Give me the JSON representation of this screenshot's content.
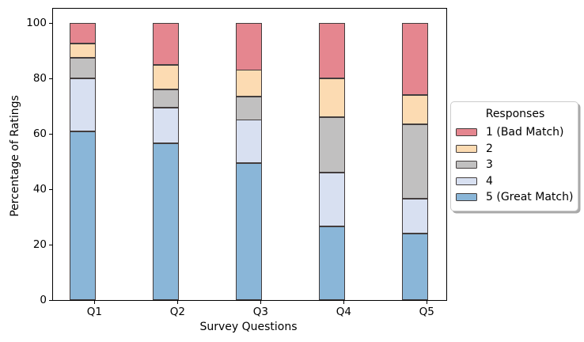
{
  "chart_data": {
    "type": "bar",
    "stacked": true,
    "title": "",
    "xlabel": "Survey Questions",
    "ylabel": "Percentage of Ratings",
    "categories": [
      "Q1",
      "Q2",
      "Q3",
      "Q4",
      "Q5"
    ],
    "series": [
      {
        "name": "1 (Bad Match)",
        "color": "#e5868f",
        "values": [
          7.5,
          15,
          17,
          20,
          26
        ]
      },
      {
        "name": "2",
        "color": "#fcdbb2",
        "values": [
          5,
          9,
          9.5,
          14,
          10.5
        ]
      },
      {
        "name": "3",
        "color": "#c1c0c0",
        "values": [
          7.5,
          6.5,
          8.5,
          20,
          27
        ]
      },
      {
        "name": "4",
        "color": "#d8e0f1",
        "values": [
          19,
          13,
          15.5,
          19.5,
          12.5
        ]
      },
      {
        "name": "5 (Great Match)",
        "color": "#8ab6d8",
        "values": [
          61,
          56.5,
          49.5,
          26.5,
          24
        ]
      }
    ],
    "stack_order_bottom_to_top": [
      "5 (Great Match)",
      "4",
      "3",
      "2",
      "1 (Bad Match)"
    ],
    "ylim": [
      0,
      105
    ],
    "yticks": [
      0,
      20,
      40,
      60,
      80,
      100
    ],
    "grid": false,
    "bar_edge_color": "#433d3d",
    "legend": {
      "title": "Responses",
      "position": "right-outside"
    }
  }
}
